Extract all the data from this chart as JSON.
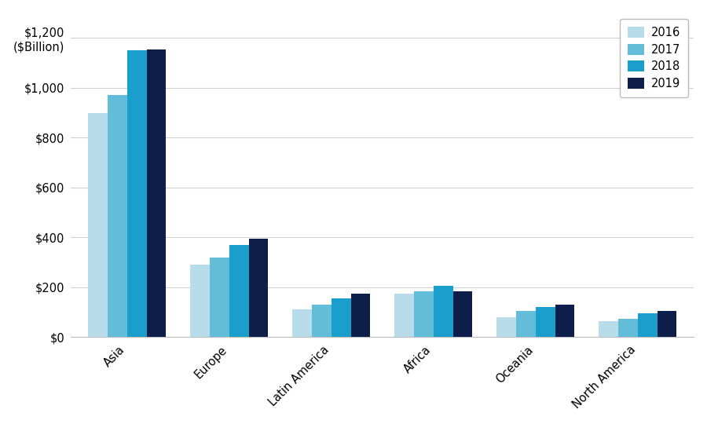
{
  "categories": [
    "Asia",
    "Europe",
    "Latin America",
    "Africa",
    "Oceania",
    "North America"
  ],
  "years": [
    "2016",
    "2017",
    "2018",
    "2019"
  ],
  "values": {
    "2016": [
      900,
      290,
      110,
      175,
      80,
      65
    ],
    "2017": [
      970,
      320,
      130,
      185,
      105,
      75
    ],
    "2018": [
      1150,
      370,
      155,
      205,
      120,
      95
    ],
    "2019": [
      1155,
      395,
      175,
      185,
      130,
      105
    ]
  },
  "colors": {
    "2016": "#b8dcea",
    "2017": "#63bcd8",
    "2018": "#1a9fcc",
    "2019": "#0d1e4a"
  },
  "ylim": [
    0,
    1300
  ],
  "yticks": [
    0,
    200,
    400,
    600,
    800,
    1000,
    1200
  ],
  "ytick_labels": [
    "$0",
    "$200",
    "$400",
    "$600",
    "$800",
    "$1,000",
    "$1,200\n($Billion)"
  ],
  "background_color": "#ffffff",
  "grid_color": "#d0d0d0",
  "bar_width": 0.19
}
